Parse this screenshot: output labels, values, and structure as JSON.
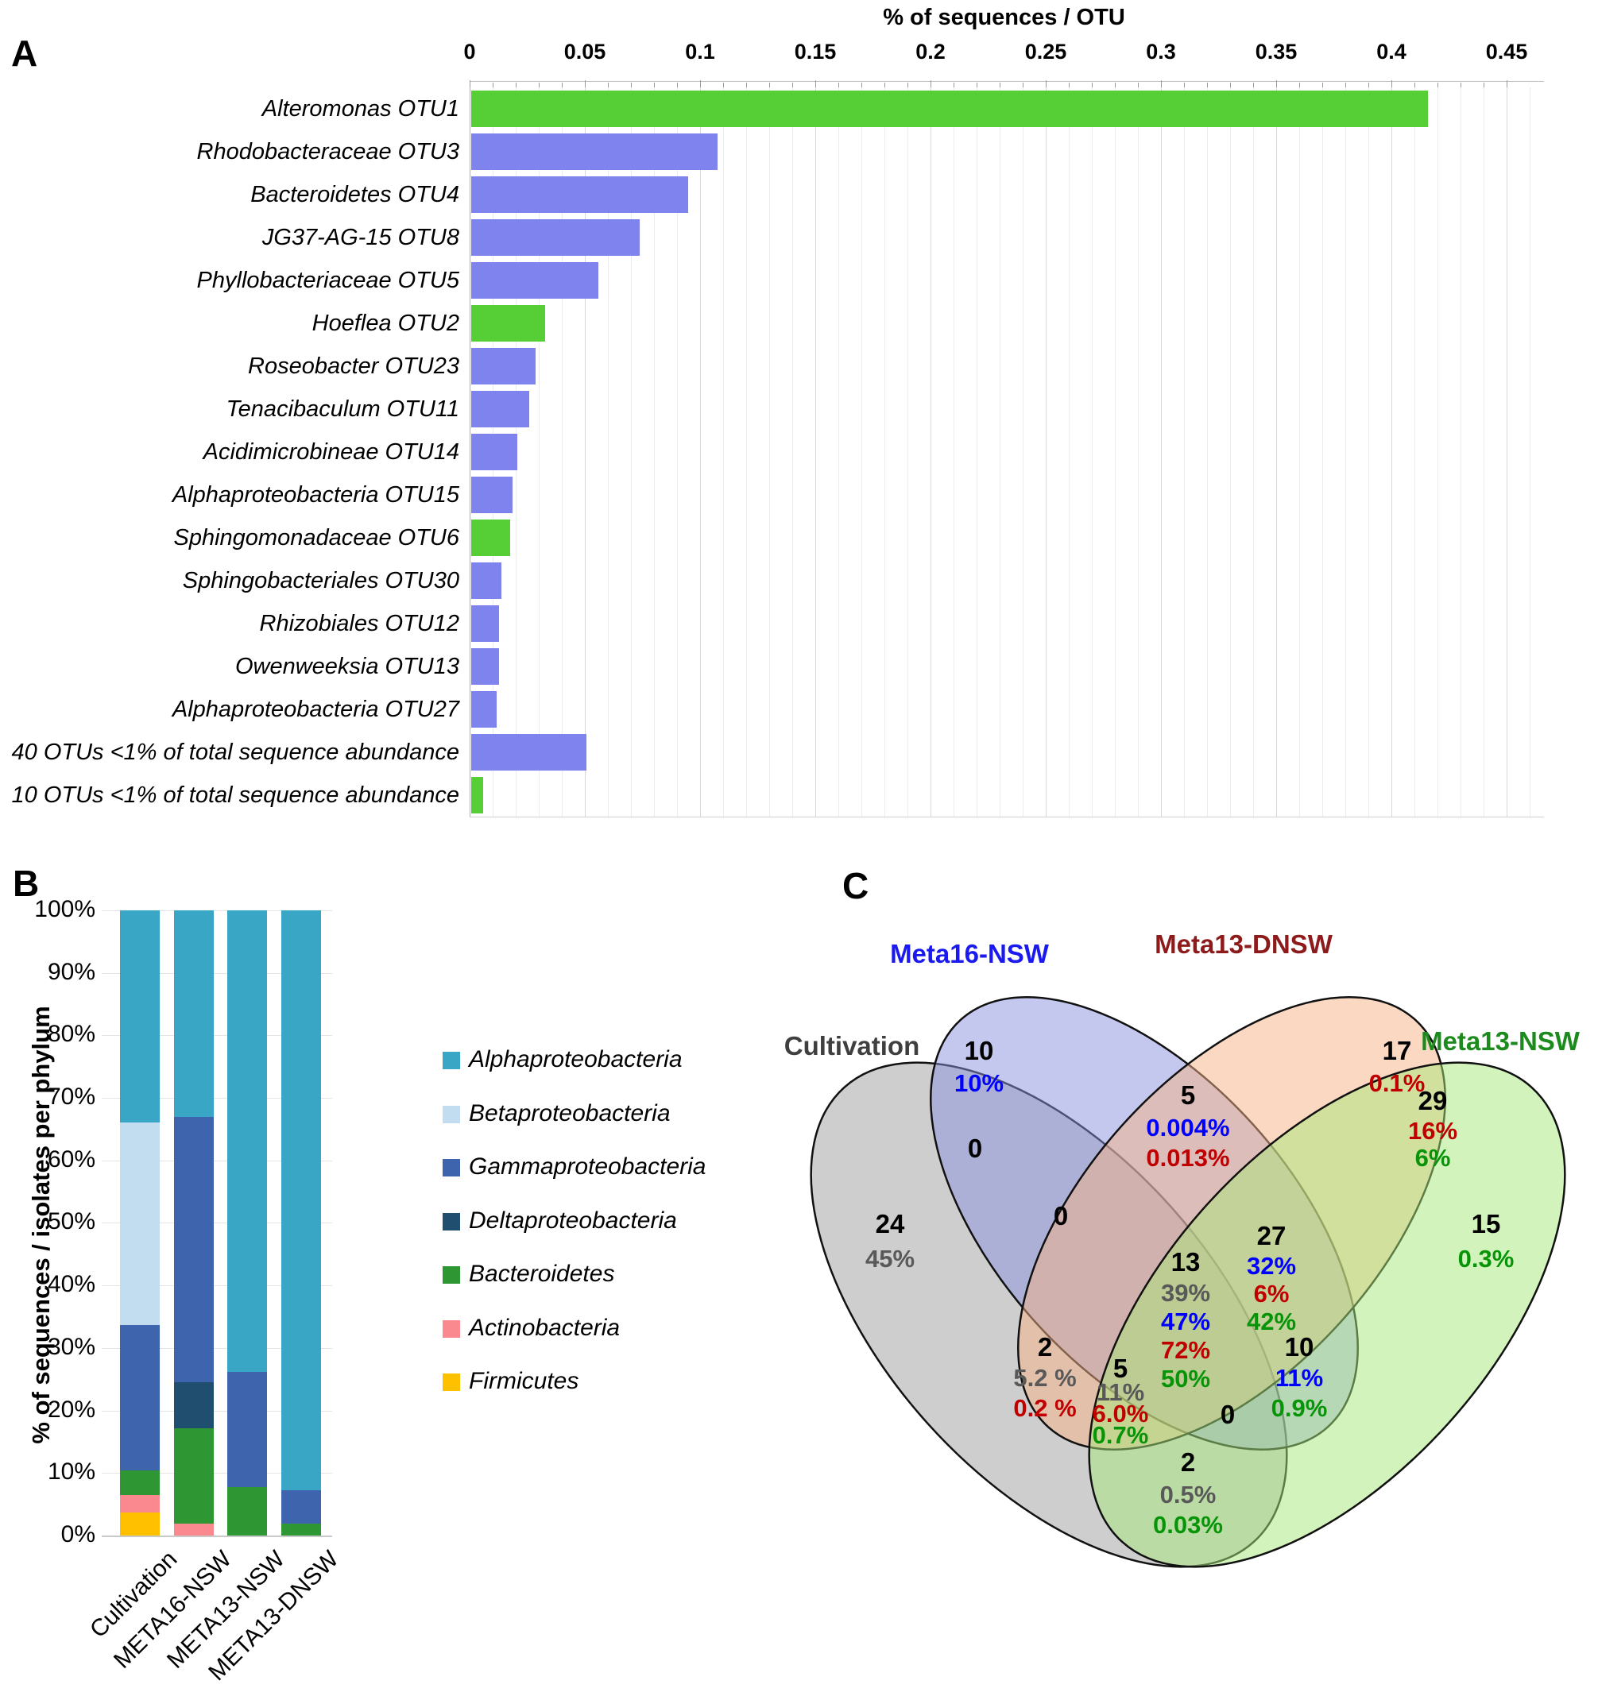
{
  "panel_a": {
    "label": "A",
    "title": "% of sequences / OTU"
  },
  "panel_b": {
    "label": "B",
    "y_axis_title": "% of sequences / isolates per phylum"
  },
  "panel_c": {
    "label": "C"
  },
  "chart_data": [
    {
      "type": "bar",
      "orientation": "horizontal",
      "title": "% of sequences / OTU",
      "xlabel": "% of sequences / OTU",
      "ylabel": "",
      "xlim": [
        0,
        0.45
      ],
      "x_ticks": [
        "0",
        "0.05",
        "0.1",
        "0.15",
        "0.2",
        "0.25",
        "0.3",
        "0.35",
        "0.4",
        "0.45"
      ],
      "minor_grid_step": 0.01,
      "grid": true,
      "colors": {
        "highlight_green": "#55cf35",
        "default_purple": "#7f83ee"
      },
      "categories": [
        "Alteromonas OTU1",
        "Rhodobacteraceae OTU3",
        "Bacteroidetes OTU4",
        "JG37-AG-15 OTU8",
        "Phyllobacteriaceae OTU5",
        "Hoeflea OTU2",
        "Roseobacter OTU23",
        "Tenacibaculum OTU11",
        "Acidimicrobineae OTU14",
        "Alphaproteobacteria OTU15",
        "Sphingomonadaceae OTU6",
        "Sphingobacteriales OTU30",
        "Rhizobiales OTU12",
        "Owenweeksia OTU13",
        "Alphaproteobacteria OTU27",
        "40 OTUs <1% of total sequence abundance",
        "10  OTUs <1% of total sequence abundance"
      ],
      "values": [
        0.415,
        0.107,
        0.094,
        0.073,
        0.055,
        0.032,
        0.028,
        0.025,
        0.02,
        0.018,
        0.017,
        0.013,
        0.012,
        0.012,
        0.011,
        0.05,
        0.005
      ],
      "highlight": [
        true,
        false,
        false,
        false,
        false,
        true,
        false,
        false,
        false,
        false,
        true,
        false,
        false,
        false,
        false,
        false,
        true
      ]
    },
    {
      "type": "stacked_bar_percent",
      "title": "",
      "ylabel": "% of sequences / isolates per phylum",
      "ylim": [
        0,
        100
      ],
      "y_ticks": [
        "0%",
        "10%",
        "20%",
        "30%",
        "40%",
        "50%",
        "60%",
        "70%",
        "80%",
        "90%",
        "100%"
      ],
      "grid": true,
      "legend_position": "right",
      "categories": [
        "Cultivation",
        "META16-NSW",
        "META13-NSW",
        "META13-DNSW"
      ],
      "series": [
        {
          "name": "Alphaproteobacteria",
          "color": "#39a6c6",
          "values": [
            33.9,
            33.0,
            73.8,
            92.8
          ]
        },
        {
          "name": "Betaproteobacteria",
          "color": "#c2dcf0",
          "values": [
            32.4,
            0,
            0,
            0
          ]
        },
        {
          "name": "Gammaproteobacteria",
          "color": "#3f64ae",
          "values": [
            23.3,
            42.5,
            18.4,
            5.3
          ]
        },
        {
          "name": "Deltaproteobacteria",
          "color": "#1f4e6e",
          "values": [
            0,
            7.3,
            0,
            0
          ]
        },
        {
          "name": "Bacteroidetes",
          "color": "#2e9632",
          "values": [
            3.9,
            15.3,
            7.8,
            1.9
          ]
        },
        {
          "name": "Actinobacteria",
          "color": "#f9888f",
          "values": [
            2.8,
            1.9,
            0,
            0
          ]
        },
        {
          "name": "Firmicutes",
          "color": "#ffc000",
          "values": [
            3.7,
            0,
            0,
            0
          ]
        }
      ]
    },
    {
      "type": "venn4",
      "sets": [
        {
          "id": "a",
          "label": "Cultivation",
          "label_color": "#3f3f3f",
          "fill": "#9e9e9e",
          "pct_color": "#595959"
        },
        {
          "id": "b",
          "label": "Meta16-NSW",
          "label_color": "#1a1aee",
          "fill": "#8a92e0",
          "pct_color": "#0000ff"
        },
        {
          "id": "c",
          "label": "Meta13-DNSW",
          "label_color": "#8e1b1b",
          "fill": "#f5b183",
          "pct_color": "#c00000"
        },
        {
          "id": "d",
          "label": "Meta13-NSW",
          "label_color": "#1c8a1c",
          "fill": "#a8e87a",
          "pct_color": "#089408"
        }
      ],
      "regions": [
        {
          "id": "a",
          "count": "24",
          "percents": [
            {
              "text": "45%",
              "set": "a"
            }
          ]
        },
        {
          "id": "b",
          "count": "10",
          "percents": [
            {
              "text": "10%",
              "set": "b"
            }
          ]
        },
        {
          "id": "c",
          "count": "17",
          "percents": [
            {
              "text": "0.1%",
              "set": "c"
            }
          ]
        },
        {
          "id": "d",
          "count": "15",
          "percents": [
            {
              "text": "0.3%",
              "set": "d"
            }
          ]
        },
        {
          "id": "ab",
          "count": "0",
          "percents": []
        },
        {
          "id": "ac",
          "count": "2",
          "percents": [
            {
              "text": "5.2 %",
              "set": "a"
            },
            {
              "text": "0.2 %",
              "set": "c"
            }
          ]
        },
        {
          "id": "ad",
          "count": "2",
          "percents": [
            {
              "text": "0.5%",
              "set": "a"
            },
            {
              "text": "0.03%",
              "set": "d"
            }
          ]
        },
        {
          "id": "bc",
          "count": "5",
          "percents": [
            {
              "text": "0.004%",
              "set": "b"
            },
            {
              "text": "0.013%",
              "set": "c"
            }
          ]
        },
        {
          "id": "bd",
          "count": "10",
          "percents": [
            {
              "text": "11%",
              "set": "b"
            },
            {
              "text": "0.9%",
              "set": "d"
            }
          ]
        },
        {
          "id": "cd",
          "count": "29",
          "percents": [
            {
              "text": "16%",
              "set": "c"
            },
            {
              "text": "6%",
              "set": "d"
            }
          ]
        },
        {
          "id": "abc",
          "count": "0",
          "percents": []
        },
        {
          "id": "abd",
          "count": "0",
          "percents": []
        },
        {
          "id": "acd",
          "count": "5",
          "percents": [
            {
              "text": "11%",
              "set": "a"
            },
            {
              "text": "6.0%",
              "set": "c"
            },
            {
              "text": "0.7%",
              "set": "d"
            }
          ]
        },
        {
          "id": "bcd",
          "count": "27",
          "percents": [
            {
              "text": "32%",
              "set": "b"
            },
            {
              "text": "6%",
              "set": "c"
            },
            {
              "text": "42%",
              "set": "d"
            }
          ]
        },
        {
          "id": "abcd",
          "count": "13",
          "percents": [
            {
              "text": "39%",
              "set": "a"
            },
            {
              "text": "47%",
              "set": "b"
            },
            {
              "text": "72%",
              "set": "c"
            },
            {
              "text": "50%",
              "set": "d"
            }
          ]
        }
      ]
    }
  ]
}
